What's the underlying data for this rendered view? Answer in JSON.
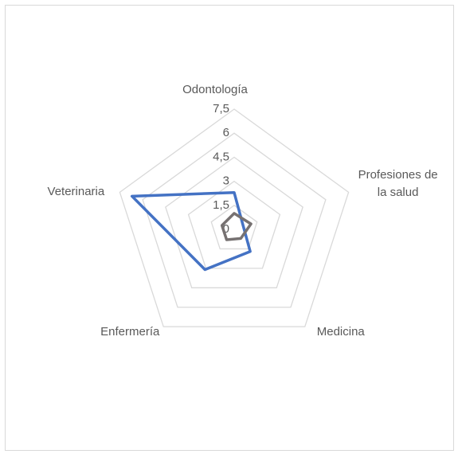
{
  "chart_data": {
    "type": "radar",
    "categories": [
      "Odontología",
      "Profesiones de la salud",
      "Medicina",
      "Enfermería",
      "Veterinaria"
    ],
    "series": [
      {
        "color": "#4472c4",
        "values": [
          2.3,
          0.6,
          1.7,
          3.1,
          6.7
        ]
      },
      {
        "color": "#767171",
        "values": [
          1.0,
          1.1,
          0.7,
          0.8,
          0.8
        ]
      }
    ],
    "ylim": [
      0,
      7.5
    ],
    "yticks": [
      0,
      {
        "value": 1.5,
        "label": "1,5"
      },
      3,
      {
        "value": 4.5,
        "label": "4,5"
      },
      6,
      {
        "value": 7.5,
        "label": "7,5"
      }
    ],
    "grid": true
  }
}
